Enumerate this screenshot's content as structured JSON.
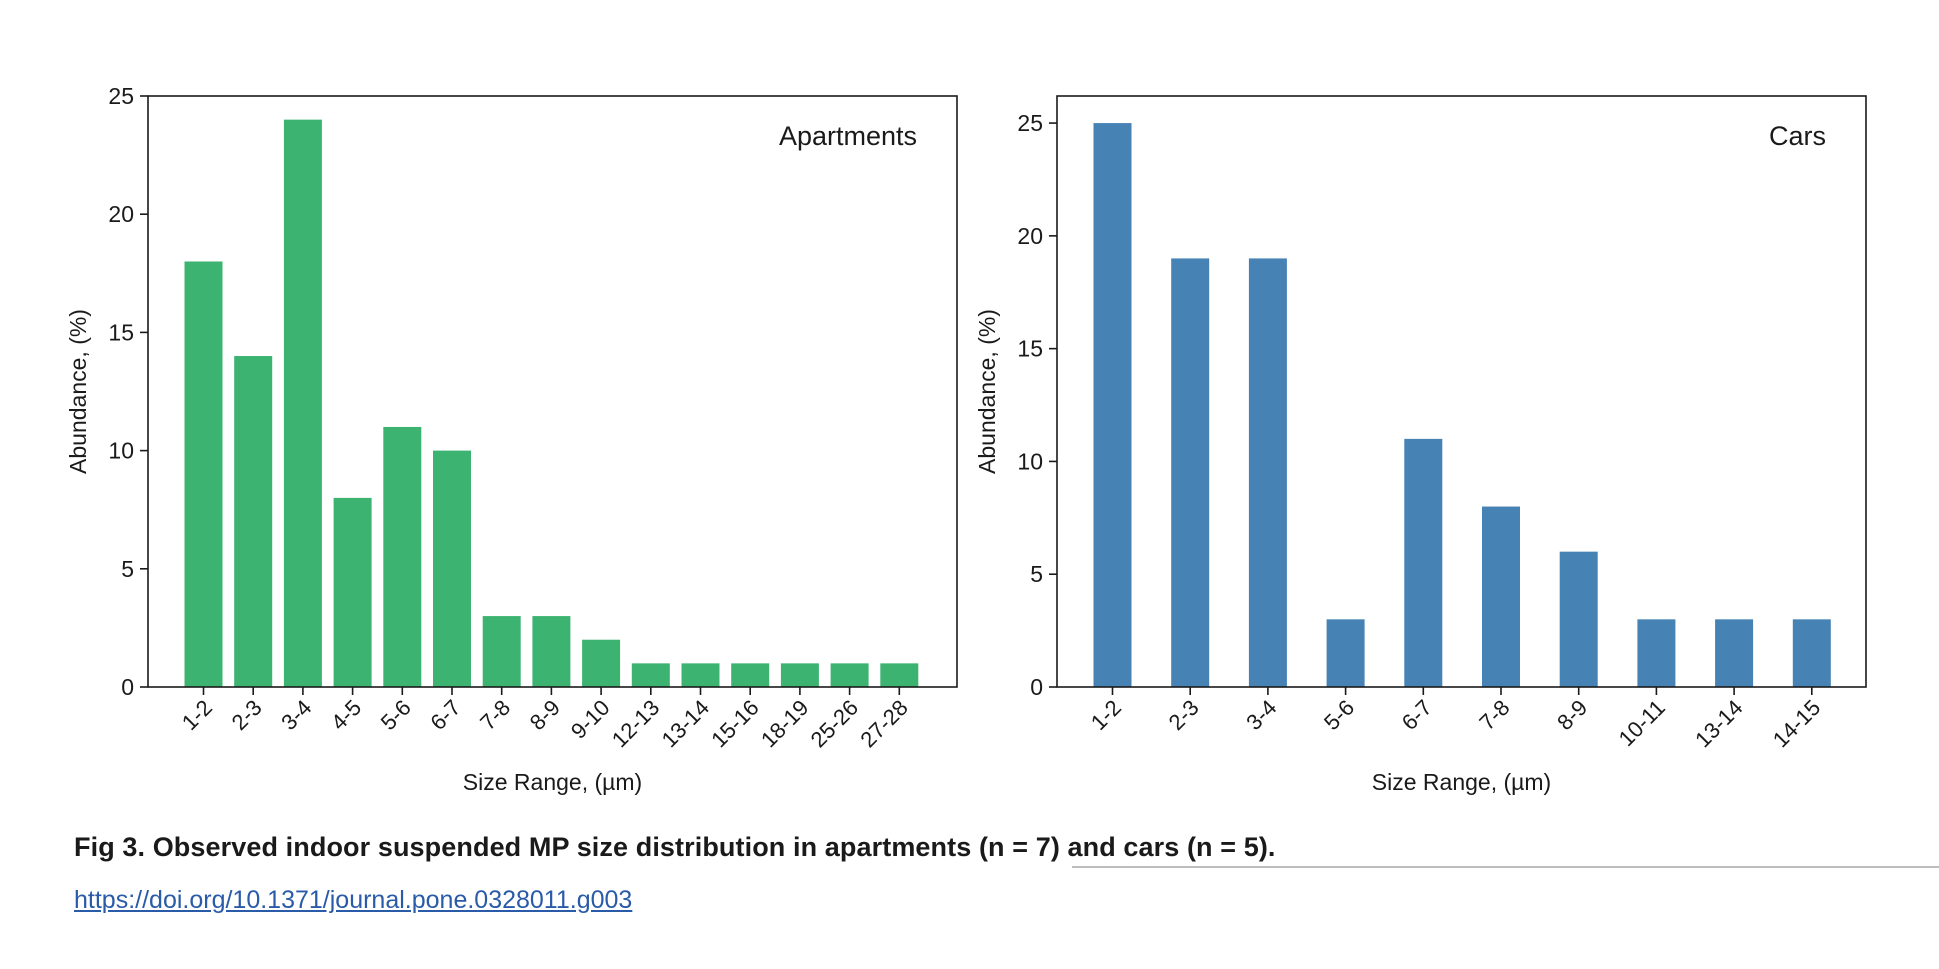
{
  "chart_data": [
    {
      "type": "bar",
      "panel_label": "Apartments",
      "categories": [
        "1-2",
        "2-3",
        "3-4",
        "4-5",
        "5-6",
        "6-7",
        "7-8",
        "8-9",
        "9-10",
        "12-13",
        "13-14",
        "15-16",
        "18-19",
        "25-26",
        "27-28"
      ],
      "values": [
        18,
        14,
        24,
        8,
        11,
        10,
        3,
        3,
        2,
        1,
        1,
        1,
        1,
        1,
        1
      ],
      "xlabel": "Size Range, (µm)",
      "ylabel": "Abundance, (%)",
      "ylim": [
        0,
        25
      ],
      "yticks": [
        0,
        5,
        10,
        15,
        20,
        25
      ],
      "bar_color": "#3cb371",
      "grid": false
    },
    {
      "type": "bar",
      "panel_label": "Cars",
      "categories": [
        "1-2",
        "2-3",
        "3-4",
        "5-6",
        "6-7",
        "7-8",
        "8-9",
        "10-11",
        "13-14",
        "14-15"
      ],
      "values": [
        25,
        19,
        19,
        3,
        11,
        8,
        6,
        3,
        3,
        3
      ],
      "xlabel": "Size Range, (µm)",
      "ylabel": "Abundance, (%)",
      "ylim": [
        0,
        26.2
      ],
      "yticks": [
        0,
        5,
        10,
        15,
        20,
        25
      ],
      "bar_color": "#4682b4",
      "grid": false
    }
  ],
  "caption": {
    "text": "Fig 3.  Observed indoor suspended MP size distribution in apartments (n  = 7) and cars (n = 5)."
  },
  "doi": {
    "text": "https://doi.org/10.1371/journal.pone.0328011.g003"
  }
}
